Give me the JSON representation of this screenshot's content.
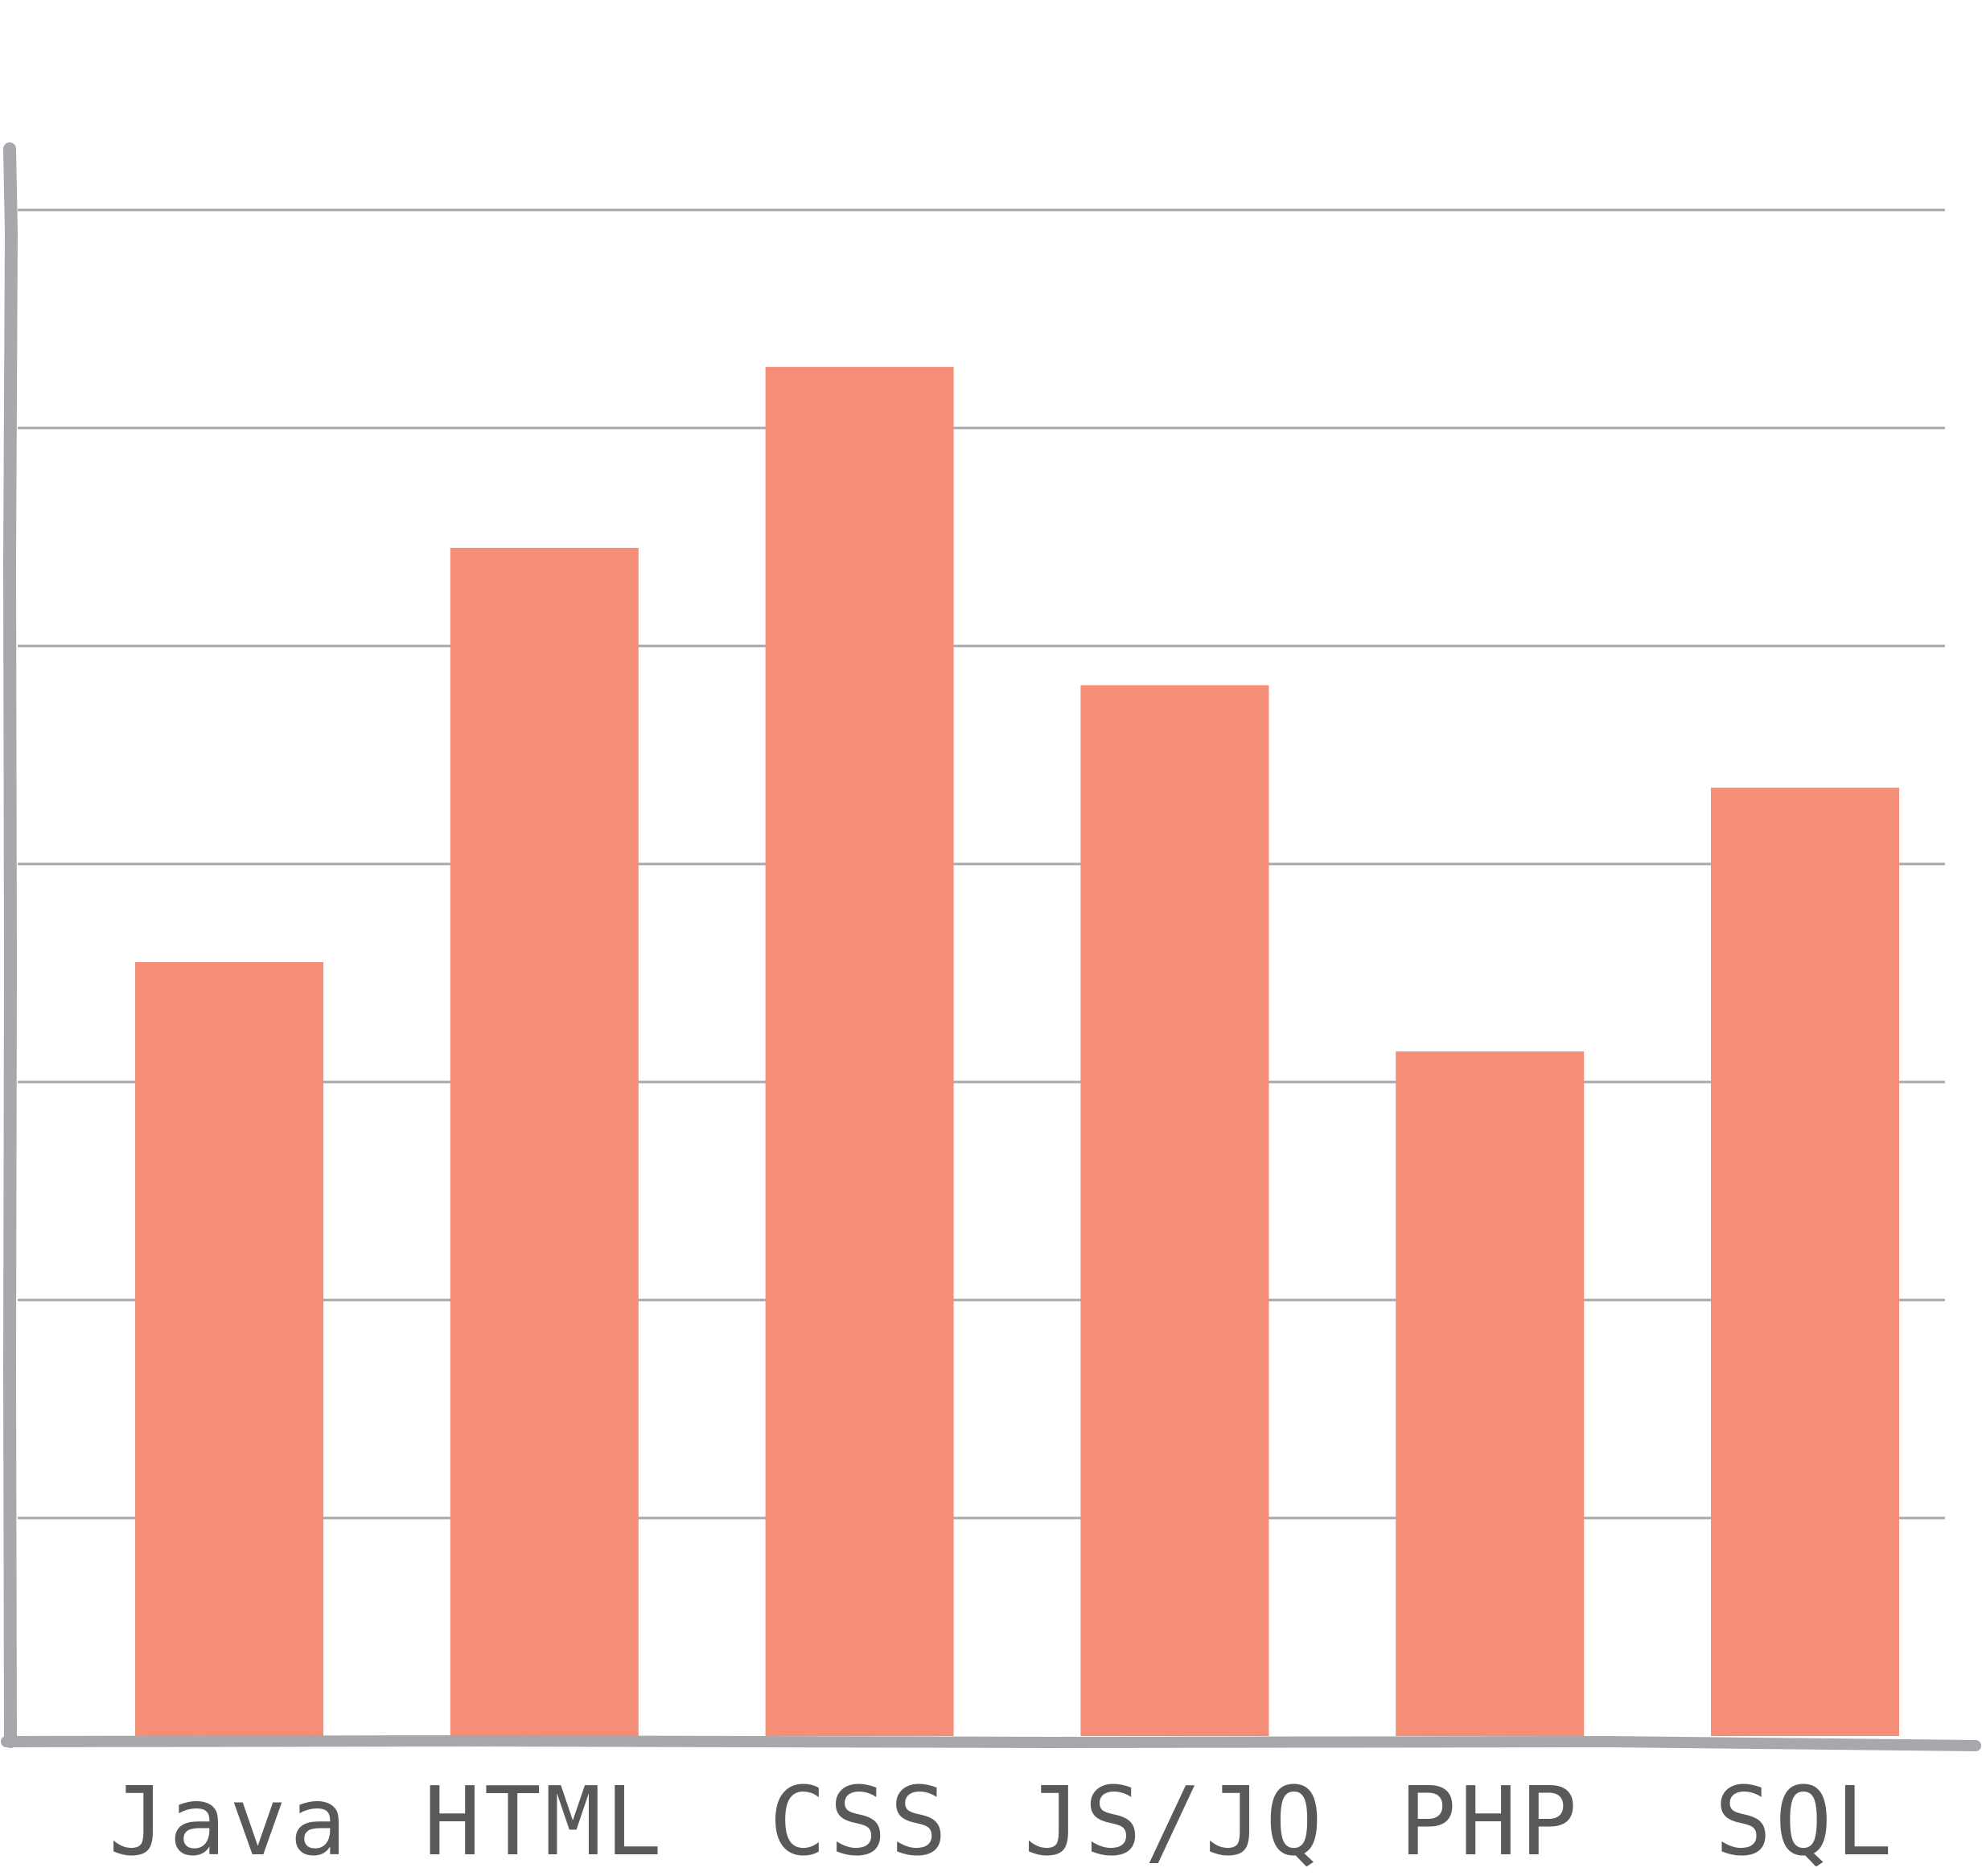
{
  "chart_data": {
    "type": "bar",
    "title": "",
    "xlabel": "",
    "ylabel": "",
    "categories": [
      "Java",
      "HTML",
      "CSS",
      "JS/JQ",
      "PHP",
      "SQL"
    ],
    "values": [
      3.55,
      5.45,
      6.28,
      4.82,
      3.14,
      4.35
    ],
    "ylim": [
      0,
      7
    ],
    "ygrid_step": 1,
    "grid": true,
    "legend": "none",
    "colors": {
      "bar": "#f58e77",
      "grid": "#a7a8ab",
      "axis": "#a7a8ab",
      "label": "#59595b"
    }
  }
}
